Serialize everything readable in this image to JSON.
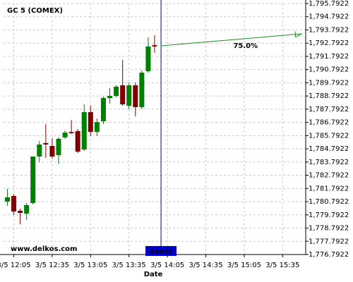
{
  "chart_data": {
    "type": "candlestick",
    "title": "GC 5 (COMEX)",
    "watermark": "www.delkos.com",
    "x_label": "Date",
    "up_color": "#008000",
    "down_color": "#800000",
    "grid": true,
    "x": [
      "3/5 12:00",
      "3/5 12:05",
      "3/5 12:10",
      "3/5 12:15",
      "3/5 12:20",
      "3/5 12:25",
      "3/5 12:30",
      "3/5 12:35",
      "3/5 12:40",
      "3/5 12:45",
      "3/5 12:50",
      "3/5 12:55",
      "3/5 13:00",
      "3/5 13:05",
      "3/5 13:10",
      "3/5 13:15",
      "3/5 13:20",
      "3/5 13:25",
      "3/5 13:30",
      "3/5 13:35",
      "3/5 13:40",
      "3/5 13:45",
      "3/5 13:50",
      "3/5 13:55"
    ],
    "open": [
      1780.8,
      1781.22,
      1780.1,
      1779.89,
      1780.69,
      1784.21,
      1785.23,
      1785.01,
      1784.32,
      1785.66,
      1786.07,
      1786.13,
      1784.74,
      1787.57,
      1786.07,
      1786.88,
      1788.64,
      1788.8,
      1789.6,
      1788.05,
      1789.6,
      1787.95,
      1790.67,
      1792.64
    ],
    "high": [
      1781.76,
      1781.38,
      1780.26,
      1780.69,
      1784.21,
      1785.39,
      1786.66,
      1785.6,
      1785.66,
      1786.18,
      1786.98,
      1786.29,
      1788.16,
      1788.05,
      1787.09,
      1788.75,
      1789.39,
      1789.6,
      1791.52,
      1789.82,
      1789.82,
      1790.72,
      1793.23,
      1793.39
    ],
    "low": [
      1780.48,
      1779.79,
      1779.09,
      1779.41,
      1780.58,
      1783.79,
      1784.1,
      1784.05,
      1783.63,
      1785.55,
      1785.92,
      1784.48,
      1784.64,
      1785.76,
      1785.76,
      1786.66,
      1788.21,
      1788.69,
      1788.05,
      1787.79,
      1787.25,
      1787.79,
      1790.56,
      1792.06
    ],
    "close": [
      1781.12,
      1780.05,
      1779.94,
      1780.53,
      1784.21,
      1785.12,
      1785.12,
      1784.21,
      1785.55,
      1786.02,
      1785.98,
      1784.58,
      1787.57,
      1786.07,
      1786.82,
      1788.64,
      1788.8,
      1789.5,
      1788.16,
      1789.6,
      1787.95,
      1790.56,
      1792.54,
      1792.54
    ],
    "xlim": [
      "3/5 11:57",
      "3/5 15:53"
    ],
    "xticks": [
      {
        "value": "3/5 12:05",
        "label": "3/5 12:05"
      },
      {
        "value": "3/5 12:35",
        "label": "3/5 12:35"
      },
      {
        "value": "3/5 13:05",
        "label": "3/5 13:05"
      },
      {
        "value": "3/5 13:35",
        "label": "3/5 13:35"
      },
      {
        "value": "3/5 14:05",
        "label": "3/5 14:05"
      },
      {
        "value": "3/5 14:35",
        "label": "3/5 14:35"
      },
      {
        "value": "3/5 15:05",
        "label": "3/5 15:05"
      },
      {
        "value": "3/5 15:35",
        "label": "3/5 15:35"
      }
    ],
    "ylim": [
      1776.7922,
      1795.7922
    ],
    "yticks": [
      {
        "value": 1776.7922,
        "label": "1,776.7922"
      },
      {
        "value": 1777.7922,
        "label": "1,777.7922"
      },
      {
        "value": 1778.7922,
        "label": "1,778.7922"
      },
      {
        "value": 1779.7922,
        "label": "1,779.7922"
      },
      {
        "value": 1780.7922,
        "label": "1,780.7922"
      },
      {
        "value": 1781.7922,
        "label": "1,781.7922"
      },
      {
        "value": 1782.7922,
        "label": "1,782.7922"
      },
      {
        "value": 1783.7922,
        "label": "1,783.7922"
      },
      {
        "value": 1784.7922,
        "label": "1,784.7922"
      },
      {
        "value": 1785.7922,
        "label": "1,785.7922"
      },
      {
        "value": 1786.7922,
        "label": "1,786.7922"
      },
      {
        "value": 1787.7922,
        "label": "1,787.7922"
      },
      {
        "value": 1788.7922,
        "label": "1,788.7922"
      },
      {
        "value": 1789.7922,
        "label": "1,789.7922"
      },
      {
        "value": 1790.7922,
        "label": "1,790.7922"
      },
      {
        "value": 1791.7922,
        "label": "1,791.7922"
      },
      {
        "value": 1792.7922,
        "label": "1,792.7922"
      },
      {
        "value": 1793.7922,
        "label": "1,793.7922"
      },
      {
        "value": 1794.7922,
        "label": "1,794.7922"
      },
      {
        "value": 1795.7922,
        "label": "1,795.7922"
      }
    ],
    "event": {
      "x": "3/5 14:00",
      "label": "Event",
      "color": "#0000cc"
    },
    "projection": {
      "x": [
        "3/5 14:00",
        "3/5 15:50"
      ],
      "y": [
        1792.59,
        1793.5
      ],
      "label": "75.0%",
      "color": "#228b22"
    }
  }
}
